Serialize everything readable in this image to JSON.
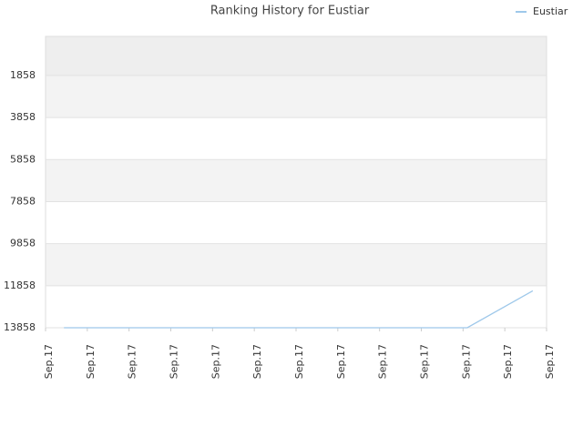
{
  "chart_data": {
    "type": "line",
    "title": "Ranking History for Eustiar",
    "x": [
      0.44,
      10.1,
      11.67
    ],
    "series": [
      {
        "name": "Eustiar",
        "color": "#9ec8ea",
        "values": [
          13858,
          13858,
          12100
        ]
      }
    ],
    "xlim": [
      0,
      12
    ],
    "xticks": [
      {
        "value": 0,
        "label": "Sep.17"
      },
      {
        "value": 1,
        "label": "Sep.17"
      },
      {
        "value": 2,
        "label": "Sep.17"
      },
      {
        "value": 3,
        "label": "Sep.17"
      },
      {
        "value": 4,
        "label": "Sep.17"
      },
      {
        "value": 5,
        "label": "Sep.17"
      },
      {
        "value": 6,
        "label": "Sep.17"
      },
      {
        "value": 7,
        "label": "Sep.17"
      },
      {
        "value": 8,
        "label": "Sep.17"
      },
      {
        "value": 9,
        "label": "Sep.17"
      },
      {
        "value": 10,
        "label": "Sep.17"
      },
      {
        "value": 11,
        "label": "Sep.17"
      },
      {
        "value": 12,
        "label": "Sep.17"
      }
    ],
    "ylim": [
      13858,
      0
    ],
    "yticks": [
      1858,
      3858,
      5858,
      7858,
      9858,
      11858,
      13858
    ],
    "grid": true,
    "legend": "top-right"
  }
}
